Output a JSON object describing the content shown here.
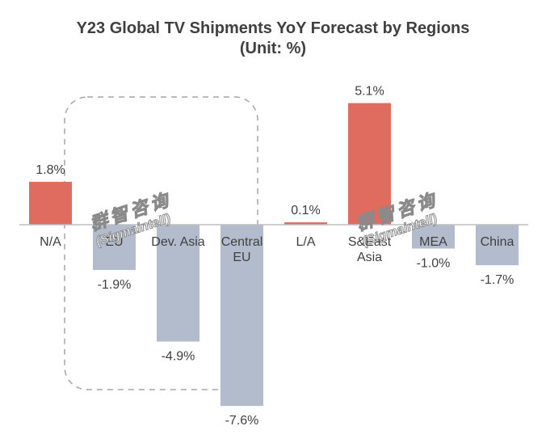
{
  "chart_data": {
    "type": "bar",
    "title": "Y23 Global TV Shipments YoY Forecast by Regions",
    "subtitle": "(Unit: %)",
    "categories": [
      [
        "N/A"
      ],
      [
        "EU"
      ],
      [
        "Dev. Asia"
      ],
      [
        "Central",
        "EU"
      ],
      [
        "L/A"
      ],
      [
        "S&East",
        "Asia"
      ],
      [
        "MEA"
      ],
      [
        "China"
      ]
    ],
    "values": [
      1.8,
      -1.9,
      -4.9,
      -7.6,
      0.1,
      5.1,
      -1.0,
      -1.7
    ],
    "data_labels": [
      "1.8%",
      "-1.9%",
      "-4.9%",
      "-7.6%",
      "0.1%",
      "5.1%",
      "-1.0%",
      "-1.7%"
    ],
    "value_unit": "%",
    "ylim": [
      -7.6,
      5.1
    ],
    "grid": false,
    "legend": "none",
    "highlight_group": [
      "EU",
      "Dev. Asia",
      "Central EU"
    ],
    "colors": {
      "positive": "#e06c5f",
      "negative": "#b3bccc",
      "axis": "#bfbfbf",
      "highlight_box": "#a6a6a6",
      "text": "#404040"
    }
  },
  "watermark": {
    "text_cn": "群智咨询",
    "text_en": "(Sigmaintell)"
  }
}
